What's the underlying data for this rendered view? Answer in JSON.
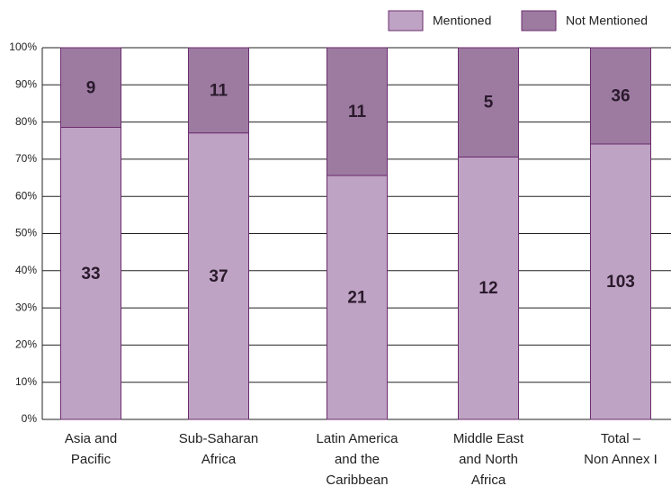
{
  "chart_data": {
    "type": "stacked-bar-100",
    "categories": [
      "Asia and\nPacific",
      "Sub-Saharan\nAfrica",
      "Latin America\nand the\nCaribbean",
      "Middle East\nand North\nAfrica",
      "Total –\nNon Annex I"
    ],
    "series": [
      {
        "name": "Mentioned",
        "color": "#bfa3c4",
        "values": [
          78.57,
          77.08,
          65.63,
          70.59,
          74.1
        ],
        "counts": [
          33,
          37,
          21,
          12,
          103
        ]
      },
      {
        "name": "Not Mentioned",
        "color": "#9d7ba1",
        "values": [
          21.43,
          22.92,
          34.38,
          29.41,
          25.9
        ],
        "counts": [
          9,
          11,
          11,
          5,
          36
        ]
      }
    ],
    "ylim": [
      0,
      100
    ],
    "yticks": [
      {
        "value": 0,
        "label": "0%"
      },
      {
        "value": 10,
        "label": "10%"
      },
      {
        "value": 20,
        "label": "20%"
      },
      {
        "value": 30,
        "label": "30%"
      },
      {
        "value": 40,
        "label": "40%"
      },
      {
        "value": 50,
        "label": "50%"
      },
      {
        "value": 60,
        "label": "60%"
      },
      {
        "value": 70,
        "label": "70%"
      },
      {
        "value": 80,
        "label": "80%"
      },
      {
        "value": 90,
        "label": "90%"
      },
      {
        "value": 100,
        "label": "100%"
      }
    ],
    "grid": true,
    "legend": "top-right",
    "edge_color": "#6b2d6e"
  }
}
